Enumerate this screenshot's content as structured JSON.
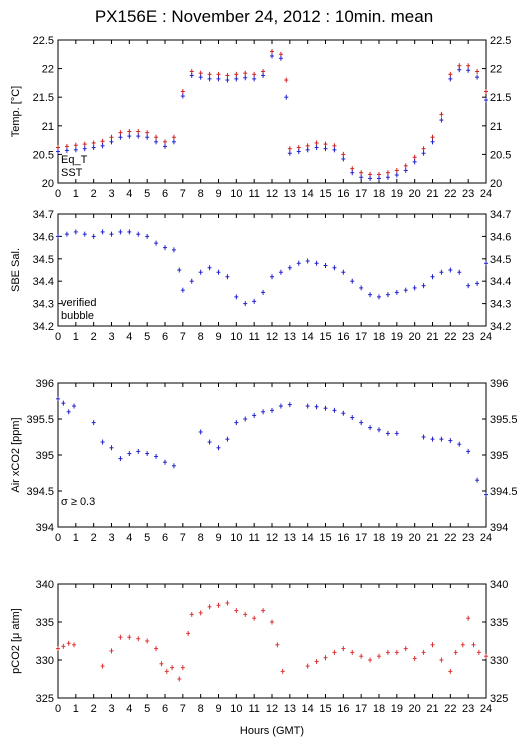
{
  "title": "PX156E : November 24, 2012 : 10min. mean",
  "xlabel": "Hours (GMT)",
  "colors": {
    "eq_t": "#cc2222",
    "sst": "#2222cc",
    "verified": "#2222cc",
    "bubble": "#cc22cc",
    "note": "#cc22cc",
    "pco2": "#dd3333",
    "air": "#2222cc"
  },
  "chart_data": [
    {
      "type": "scatter",
      "ylabel": "Temp. [°C]",
      "xlim": [
        0,
        24
      ],
      "ylim": [
        20,
        22.5
      ],
      "yticks": [
        "20",
        "20.5",
        "21",
        "21.5",
        "22",
        "22.5"
      ],
      "legend": [
        "Eq_T",
        "SST"
      ],
      "series": [
        {
          "name": "Eq_T",
          "points": [
            [
              0.0,
              20.62
            ],
            [
              0.5,
              20.64
            ],
            [
              1.0,
              20.66
            ],
            [
              1.5,
              20.68
            ],
            [
              2.0,
              20.7
            ],
            [
              2.5,
              20.73
            ],
            [
              3.0,
              20.8
            ],
            [
              3.5,
              20.88
            ],
            [
              4.0,
              20.9
            ],
            [
              4.5,
              20.9
            ],
            [
              5.0,
              20.88
            ],
            [
              5.5,
              20.8
            ],
            [
              6.0,
              20.72
            ],
            [
              6.5,
              20.8
            ],
            [
              7.0,
              21.6
            ],
            [
              7.5,
              21.95
            ],
            [
              8.0,
              21.92
            ],
            [
              8.5,
              21.9
            ],
            [
              9.0,
              21.9
            ],
            [
              9.5,
              21.88
            ],
            [
              10.0,
              21.9
            ],
            [
              10.5,
              21.92
            ],
            [
              11.0,
              21.9
            ],
            [
              11.5,
              21.95
            ],
            [
              12.0,
              22.3
            ],
            [
              12.5,
              22.25
            ],
            [
              12.8,
              21.8
            ],
            [
              13.0,
              20.6
            ],
            [
              13.5,
              20.62
            ],
            [
              14.0,
              20.65
            ],
            [
              14.5,
              20.7
            ],
            [
              15.0,
              20.68
            ],
            [
              15.5,
              20.65
            ],
            [
              16.0,
              20.5
            ],
            [
              16.5,
              20.25
            ],
            [
              17.0,
              20.18
            ],
            [
              17.5,
              20.15
            ],
            [
              18.0,
              20.15
            ],
            [
              18.5,
              20.18
            ],
            [
              19.0,
              20.22
            ],
            [
              19.5,
              20.3
            ],
            [
              20.0,
              20.45
            ],
            [
              20.5,
              20.6
            ],
            [
              21.0,
              20.8
            ],
            [
              21.5,
              21.2
            ],
            [
              22.0,
              21.9
            ],
            [
              22.5,
              22.05
            ],
            [
              23.0,
              22.05
            ],
            [
              23.5,
              21.95
            ],
            [
              24.0,
              21.6
            ]
          ]
        },
        {
          "name": "SST",
          "points": [
            [
              0.0,
              20.55
            ],
            [
              0.5,
              20.57
            ],
            [
              1.0,
              20.58
            ],
            [
              1.5,
              20.6
            ],
            [
              2.0,
              20.62
            ],
            [
              2.5,
              20.65
            ],
            [
              3.0,
              20.72
            ],
            [
              3.5,
              20.8
            ],
            [
              4.0,
              20.82
            ],
            [
              4.5,
              20.82
            ],
            [
              5.0,
              20.8
            ],
            [
              5.5,
              20.72
            ],
            [
              6.0,
              20.64
            ],
            [
              6.5,
              20.72
            ],
            [
              7.0,
              21.52
            ],
            [
              7.5,
              21.88
            ],
            [
              8.0,
              21.85
            ],
            [
              8.5,
              21.82
            ],
            [
              9.0,
              21.82
            ],
            [
              9.5,
              21.8
            ],
            [
              10.0,
              21.82
            ],
            [
              10.5,
              21.84
            ],
            [
              11.0,
              21.82
            ],
            [
              11.5,
              21.88
            ],
            [
              12.0,
              22.22
            ],
            [
              12.5,
              22.18
            ],
            [
              12.8,
              21.5
            ],
            [
              13.0,
              20.52
            ],
            [
              13.5,
              20.55
            ],
            [
              14.0,
              20.58
            ],
            [
              14.5,
              20.62
            ],
            [
              15.0,
              20.6
            ],
            [
              15.5,
              20.58
            ],
            [
              16.0,
              20.42
            ],
            [
              16.5,
              20.18
            ],
            [
              17.0,
              20.1
            ],
            [
              17.5,
              20.08
            ],
            [
              18.0,
              20.08
            ],
            [
              18.5,
              20.1
            ],
            [
              19.0,
              20.14
            ],
            [
              19.5,
              20.22
            ],
            [
              20.0,
              20.37
            ],
            [
              20.5,
              20.52
            ],
            [
              21.0,
              20.72
            ],
            [
              21.5,
              21.1
            ],
            [
              22.0,
              21.82
            ],
            [
              22.5,
              21.98
            ],
            [
              23.0,
              21.97
            ],
            [
              23.5,
              21.85
            ],
            [
              24.0,
              21.45
            ]
          ]
        }
      ]
    },
    {
      "type": "scatter",
      "ylabel": "SBE Sal.",
      "xlim": [
        0,
        24
      ],
      "ylim": [
        34.2,
        34.7
      ],
      "yticks": [
        "34.2",
        "34.3",
        "34.4",
        "34.5",
        "34.6",
        "34.7"
      ],
      "legend": [
        "verified",
        "bubble"
      ],
      "series": [
        {
          "name": "verified",
          "points": [
            [
              0.0,
              34.6
            ],
            [
              0.5,
              34.61
            ],
            [
              1.0,
              34.62
            ],
            [
              1.5,
              34.61
            ],
            [
              2.0,
              34.6
            ],
            [
              2.5,
              34.62
            ],
            [
              3.0,
              34.61
            ],
            [
              3.5,
              34.62
            ],
            [
              4.0,
              34.62
            ],
            [
              4.5,
              34.61
            ],
            [
              5.0,
              34.6
            ],
            [
              5.5,
              34.57
            ],
            [
              6.0,
              34.55
            ],
            [
              6.5,
              34.54
            ],
            [
              6.8,
              34.45
            ],
            [
              7.0,
              34.36
            ],
            [
              7.5,
              34.4
            ],
            [
              8.0,
              34.44
            ],
            [
              8.5,
              34.46
            ],
            [
              9.0,
              34.44
            ],
            [
              9.5,
              34.42
            ],
            [
              10.0,
              34.33
            ],
            [
              10.5,
              34.3
            ],
            [
              11.0,
              34.31
            ],
            [
              11.5,
              34.35
            ],
            [
              12.0,
              34.42
            ],
            [
              12.5,
              34.44
            ],
            [
              13.0,
              34.46
            ],
            [
              13.5,
              34.48
            ],
            [
              14.0,
              34.49
            ],
            [
              14.5,
              34.48
            ],
            [
              15.0,
              34.47
            ],
            [
              15.5,
              34.46
            ],
            [
              16.0,
              34.44
            ],
            [
              16.5,
              34.4
            ],
            [
              17.0,
              34.37
            ],
            [
              17.5,
              34.34
            ],
            [
              18.0,
              34.33
            ],
            [
              18.5,
              34.34
            ],
            [
              19.0,
              34.35
            ],
            [
              19.5,
              34.36
            ],
            [
              20.0,
              34.37
            ],
            [
              20.5,
              34.38
            ],
            [
              21.0,
              34.42
            ],
            [
              21.5,
              34.44
            ],
            [
              22.0,
              34.45
            ],
            [
              22.5,
              34.44
            ],
            [
              23.0,
              34.38
            ],
            [
              23.5,
              34.39
            ],
            [
              24.0,
              34.48
            ]
          ]
        }
      ]
    },
    {
      "type": "scatter",
      "ylabel": "Air xCO2 [ppm]",
      "note": "σ ≥ 0.3",
      "xlim": [
        0,
        24
      ],
      "ylim": [
        394,
        396
      ],
      "yticks": [
        "394",
        "394.5",
        "395",
        "395.5",
        "396"
      ],
      "series": [
        {
          "name": "Air xCO2",
          "points": [
            [
              0.0,
              395.78
            ],
            [
              0.3,
              395.72
            ],
            [
              0.6,
              395.6
            ],
            [
              0.9,
              395.68
            ],
            [
              2.0,
              395.45
            ],
            [
              2.5,
              395.18
            ],
            [
              3.0,
              395.1
            ],
            [
              3.5,
              394.95
            ],
            [
              4.0,
              395.02
            ],
            [
              4.5,
              395.05
            ],
            [
              5.0,
              395.02
            ],
            [
              5.5,
              394.98
            ],
            [
              6.0,
              394.9
            ],
            [
              6.5,
              394.85
            ],
            [
              8.0,
              395.32
            ],
            [
              8.5,
              395.18
            ],
            [
              9.0,
              395.1
            ],
            [
              9.5,
              395.22
            ],
            [
              10.0,
              395.45
            ],
            [
              10.5,
              395.5
            ],
            [
              11.0,
              395.55
            ],
            [
              11.5,
              395.6
            ],
            [
              12.0,
              395.62
            ],
            [
              12.5,
              395.68
            ],
            [
              13.0,
              395.7
            ],
            [
              14.0,
              395.68
            ],
            [
              14.5,
              395.67
            ],
            [
              15.0,
              395.65
            ],
            [
              15.5,
              395.62
            ],
            [
              16.0,
              395.58
            ],
            [
              16.5,
              395.52
            ],
            [
              17.0,
              395.45
            ],
            [
              17.5,
              395.38
            ],
            [
              18.0,
              395.35
            ],
            [
              18.5,
              395.3
            ],
            [
              19.0,
              395.3
            ],
            [
              20.5,
              395.25
            ],
            [
              21.0,
              395.22
            ],
            [
              21.5,
              395.22
            ],
            [
              22.0,
              395.2
            ],
            [
              22.5,
              395.15
            ],
            [
              23.0,
              395.05
            ],
            [
              23.5,
              394.65
            ],
            [
              24.0,
              394.45
            ]
          ]
        }
      ]
    },
    {
      "type": "scatter",
      "ylabel": "pCO2 [μ atm]",
      "xlim": [
        0,
        24
      ],
      "ylim": [
        325,
        340
      ],
      "yticks": [
        "325",
        "330",
        "335",
        "340"
      ],
      "series": [
        {
          "name": "pCO2",
          "points": [
            [
              0.0,
              331.5
            ],
            [
              0.3,
              331.8
            ],
            [
              0.6,
              332.2
            ],
            [
              0.9,
              332.0
            ],
            [
              2.5,
              329.2
            ],
            [
              3.0,
              331.2
            ],
            [
              3.5,
              333.0
            ],
            [
              4.0,
              333.0
            ],
            [
              4.5,
              332.8
            ],
            [
              5.0,
              332.5
            ],
            [
              5.5,
              331.5
            ],
            [
              5.8,
              329.5
            ],
            [
              6.1,
              328.5
            ],
            [
              6.4,
              329.0
            ],
            [
              6.8,
              327.5
            ],
            [
              7.0,
              329.0
            ],
            [
              7.3,
              333.5
            ],
            [
              7.5,
              336.0
            ],
            [
              8.0,
              336.2
            ],
            [
              8.5,
              337.0
            ],
            [
              9.0,
              337.2
            ],
            [
              9.5,
              337.5
            ],
            [
              10.0,
              336.5
            ],
            [
              10.5,
              336.0
            ],
            [
              11.0,
              335.5
            ],
            [
              11.5,
              336.5
            ],
            [
              12.0,
              335.0
            ],
            [
              12.3,
              332.0
            ],
            [
              12.6,
              328.5
            ],
            [
              14.0,
              329.2
            ],
            [
              14.5,
              329.8
            ],
            [
              15.0,
              330.3
            ],
            [
              15.5,
              331.0
            ],
            [
              16.0,
              331.5
            ],
            [
              16.5,
              331.0
            ],
            [
              17.0,
              330.5
            ],
            [
              17.5,
              330.0
            ],
            [
              18.0,
              330.5
            ],
            [
              18.5,
              331.0
            ],
            [
              19.0,
              331.0
            ],
            [
              19.5,
              331.5
            ],
            [
              20.0,
              330.2
            ],
            [
              20.5,
              331.0
            ],
            [
              21.0,
              332.0
            ],
            [
              21.5,
              330.0
            ],
            [
              22.0,
              328.5
            ],
            [
              22.3,
              331.0
            ],
            [
              22.7,
              332.0
            ],
            [
              23.0,
              335.5
            ],
            [
              23.3,
              332.0
            ],
            [
              23.6,
              331.0
            ],
            [
              24.0,
              330.5
            ]
          ]
        }
      ]
    }
  ]
}
